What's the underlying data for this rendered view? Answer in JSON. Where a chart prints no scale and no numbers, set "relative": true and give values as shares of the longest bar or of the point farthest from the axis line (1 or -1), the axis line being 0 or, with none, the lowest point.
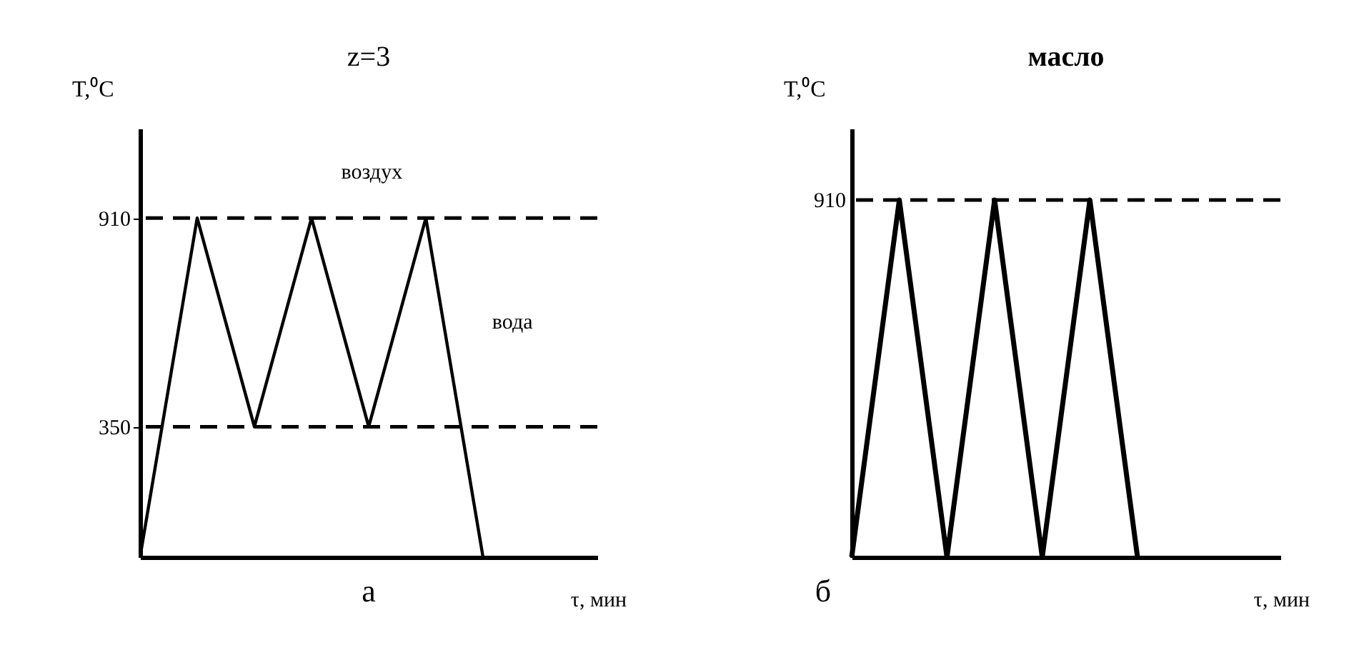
{
  "chart_data": [
    {
      "type": "line",
      "title": "z=3",
      "xlabel": "τ, мин",
      "ylabel": "T,⁰C",
      "categories": [
        null,
        null,
        null,
        null,
        null,
        null,
        null,
        null,
        null
      ],
      "ylim": [
        0,
        1150
      ],
      "yticks": [
        350,
        910
      ],
      "tick_labels": "y",
      "line_style": "solid",
      "series": [
        {
          "color": "#000000",
          "values": [
            0,
            910,
            350,
            910,
            350,
            910,
            0,
            null,
            null
          ]
        }
      ],
      "ref_lines": [
        {
          "axis": "y",
          "value": 910,
          "line_style": "dashed"
        },
        {
          "axis": "y",
          "value": 350,
          "line_style": "dashed"
        }
      ],
      "annotations": [
        "воздух",
        "вода",
        "а"
      ]
    },
    {
      "type": "line",
      "title": "масло",
      "xlabel": "τ, мин",
      "ylabel": "T,⁰C",
      "categories": [
        null,
        null,
        null,
        null,
        null,
        null,
        null,
        null,
        null,
        null
      ],
      "relative": true,
      "tick_labels": false,
      "line_style": "solid",
      "series": [
        {
          "color": "#000000",
          "values": [
            0,
            1,
            0,
            1,
            0,
            1,
            0,
            null,
            null,
            null
          ]
        }
      ],
      "ref_lines": [
        {
          "axis": "y",
          "value": 1,
          "line_style": "dashed"
        }
      ],
      "annotations": [
        "910",
        "б"
      ]
    }
  ]
}
